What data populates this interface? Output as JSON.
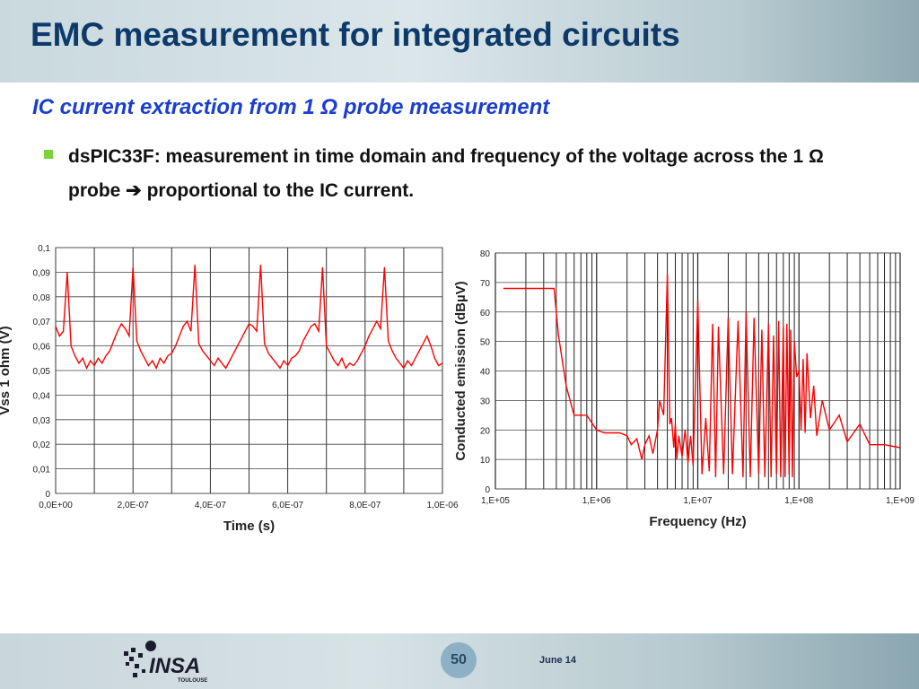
{
  "slide": {
    "title": "EMC measurement for integrated circuits",
    "subtitle": "IC current extraction from 1 Ω probe measurement",
    "bullet": "dsPIC33F: measurement in time domain and frequency of the voltage across the 1 Ω probe ➔ proportional to the IC current.",
    "page_number": "50",
    "date": "June 14",
    "logo": {
      "text": "INSA",
      "subtext": "TOULOUSE"
    },
    "colors": {
      "title": "#0d3a6b",
      "subtitle": "#1a3fd0",
      "bullet_marker": "#7bd23a",
      "trace": "#ff0000"
    }
  },
  "chart_data": [
    {
      "type": "line",
      "title": "",
      "xlabel": "Time (s)",
      "ylabel": "Vss 1 ohm (V)",
      "xlim": [
        0,
        1e-06
      ],
      "ylim": [
        0,
        0.1
      ],
      "x_ticks": [
        0,
        2e-07,
        4e-07,
        6e-07,
        8e-07,
        1e-06
      ],
      "x_tick_labels": [
        "0,0E+00",
        "2,0E-07",
        "4,0E-07",
        "6,0E-07",
        "8,0E-07",
        "1,0E-06"
      ],
      "y_ticks": [
        0,
        0.01,
        0.02,
        0.03,
        0.04,
        0.05,
        0.06,
        0.07,
        0.08,
        0.09,
        0.1
      ],
      "y_tick_labels": [
        "0",
        "0,01",
        "0,02",
        "0,03",
        "0,04",
        "0,05",
        "0,06",
        "0,07",
        "0,08",
        "0,09",
        "0,1"
      ],
      "grid": true,
      "series": [
        {
          "color": "#ff0000",
          "x": [
            0,
            1e-08,
            2e-08,
            3e-08,
            4e-08,
            5e-08,
            6e-08,
            7e-08,
            8e-08,
            9e-08,
            1e-07,
            1.1e-07,
            1.2e-07,
            1.3e-07,
            1.4e-07,
            1.5e-07,
            1.6e-07,
            1.7e-07,
            1.8e-07,
            1.9e-07,
            2e-07,
            2.1e-07,
            2.2e-07,
            2.3e-07,
            2.4e-07,
            2.5e-07,
            2.6e-07,
            2.7e-07,
            2.8e-07,
            2.9e-07,
            3e-07,
            3.1e-07,
            3.2e-07,
            3.3e-07,
            3.4e-07,
            3.5e-07,
            3.6e-07,
            3.7e-07,
            3.8e-07,
            3.9e-07,
            4e-07,
            4.1e-07,
            4.2e-07,
            4.3e-07,
            4.4e-07,
            4.5e-07,
            4.6e-07,
            4.7e-07,
            4.8e-07,
            4.9e-07,
            5e-07,
            5.1e-07,
            5.2e-07,
            5.3e-07,
            5.4e-07,
            5.5e-07,
            5.6e-07,
            5.7e-07,
            5.8e-07,
            5.9e-07,
            6e-07,
            6.1e-07,
            6.2e-07,
            6.3e-07,
            6.4e-07,
            6.5e-07,
            6.6e-07,
            6.7e-07,
            6.8e-07,
            6.9e-07,
            7e-07,
            7.1e-07,
            7.2e-07,
            7.3e-07,
            7.4e-07,
            7.5e-07,
            7.6e-07,
            7.7e-07,
            7.8e-07,
            7.9e-07,
            8e-07,
            8.1e-07,
            8.2e-07,
            8.3e-07,
            8.4e-07,
            8.5e-07,
            8.6e-07,
            8.7e-07,
            8.8e-07,
            8.9e-07,
            9e-07,
            9.1e-07,
            9.2e-07,
            9.3e-07,
            9.4e-07,
            9.5e-07,
            9.6e-07,
            9.7e-07,
            9.8e-07,
            9.9e-07,
            1e-06
          ],
          "y": [
            0.068,
            0.064,
            0.066,
            0.09,
            0.06,
            0.056,
            0.053,
            0.055,
            0.051,
            0.054,
            0.052,
            0.055,
            0.053,
            0.056,
            0.058,
            0.062,
            0.066,
            0.069,
            0.067,
            0.064,
            0.092,
            0.062,
            0.058,
            0.055,
            0.052,
            0.054,
            0.051,
            0.055,
            0.053,
            0.056,
            0.057,
            0.06,
            0.064,
            0.068,
            0.07,
            0.066,
            0.093,
            0.061,
            0.058,
            0.056,
            0.054,
            0.052,
            0.055,
            0.053,
            0.051,
            0.054,
            0.057,
            0.06,
            0.063,
            0.066,
            0.069,
            0.068,
            0.066,
            0.093,
            0.061,
            0.057,
            0.055,
            0.053,
            0.051,
            0.054,
            0.052,
            0.055,
            0.056,
            0.058,
            0.062,
            0.065,
            0.068,
            0.069,
            0.066,
            0.092,
            0.06,
            0.057,
            0.054,
            0.052,
            0.055,
            0.051,
            0.053,
            0.052,
            0.054,
            0.057,
            0.06,
            0.064,
            0.067,
            0.07,
            0.067,
            0.092,
            0.062,
            0.058,
            0.055,
            0.053,
            0.051,
            0.054,
            0.052,
            0.055,
            0.058,
            0.061,
            0.064,
            0.06,
            0.055,
            0.052,
            0.053
          ]
        }
      ]
    },
    {
      "type": "line",
      "title": "",
      "xlabel": "Frequency (Hz)",
      "ylabel": "Conducted emission (dBµV)",
      "x_scale": "log",
      "xlim": [
        100000,
        1000000000
      ],
      "ylim": [
        0,
        80
      ],
      "x_ticks": [
        100000,
        1000000,
        10000000,
        100000000,
        1000000000
      ],
      "x_tick_labels": [
        "1,E+05",
        "1,E+06",
        "1,E+07",
        "1,E+08",
        "1,E+09"
      ],
      "y_ticks": [
        0,
        10,
        20,
        30,
        40,
        50,
        60,
        70,
        80
      ],
      "y_tick_labels": [
        "0",
        "10",
        "20",
        "30",
        "40",
        "50",
        "60",
        "70",
        "80"
      ],
      "grid": true,
      "series": [
        {
          "color": "#ff0000",
          "x": [
            120000,
            200000,
            300000,
            380000,
            420000,
            500000,
            600000,
            800000,
            1000000,
            1200000,
            1400000,
            1600000,
            1700000,
            2000000,
            2200000,
            2500000,
            2800000,
            3000000,
            3300000,
            3600000,
            4000000,
            4200000,
            4600000,
            5000000,
            5300000,
            5500000,
            5800000,
            6000000,
            6200000,
            6500000,
            7000000,
            7500000,
            8000000,
            8500000,
            9000000,
            10000000,
            11000000,
            12000000,
            13000000,
            14000000,
            15000000,
            16000000,
            18000000,
            20000000,
            22000000,
            25000000,
            28000000,
            30000000,
            33000000,
            36000000,
            40000000,
            43000000,
            46000000,
            50000000,
            53000000,
            56000000,
            60000000,
            63000000,
            66000000,
            70000000,
            73000000,
            76000000,
            80000000,
            83000000,
            86000000,
            90000000,
            95000000,
            100000000,
            105000000,
            110000000,
            115000000,
            120000000,
            130000000,
            140000000,
            150000000,
            170000000,
            200000000,
            250000000,
            300000000,
            400000000,
            500000000,
            700000000,
            1000000000
          ],
          "y": [
            68,
            68,
            68,
            68,
            52,
            35,
            25,
            25,
            20,
            19,
            19,
            19,
            19,
            18,
            15,
            17,
            10,
            15,
            18,
            12,
            20,
            30,
            25,
            73,
            22,
            24,
            14,
            22,
            10,
            18,
            11,
            20,
            9,
            18,
            8,
            64,
            5,
            24,
            6,
            56,
            4,
            55,
            5,
            58,
            5,
            57,
            4,
            60,
            4,
            58,
            5,
            54,
            4,
            56,
            4,
            52,
            5,
            57,
            4,
            55,
            4,
            56,
            5,
            54,
            4,
            50,
            38,
            40,
            20,
            44,
            19,
            46,
            24,
            35,
            18,
            30,
            20,
            25,
            16,
            22,
            15,
            15,
            14
          ]
        }
      ]
    }
  ]
}
